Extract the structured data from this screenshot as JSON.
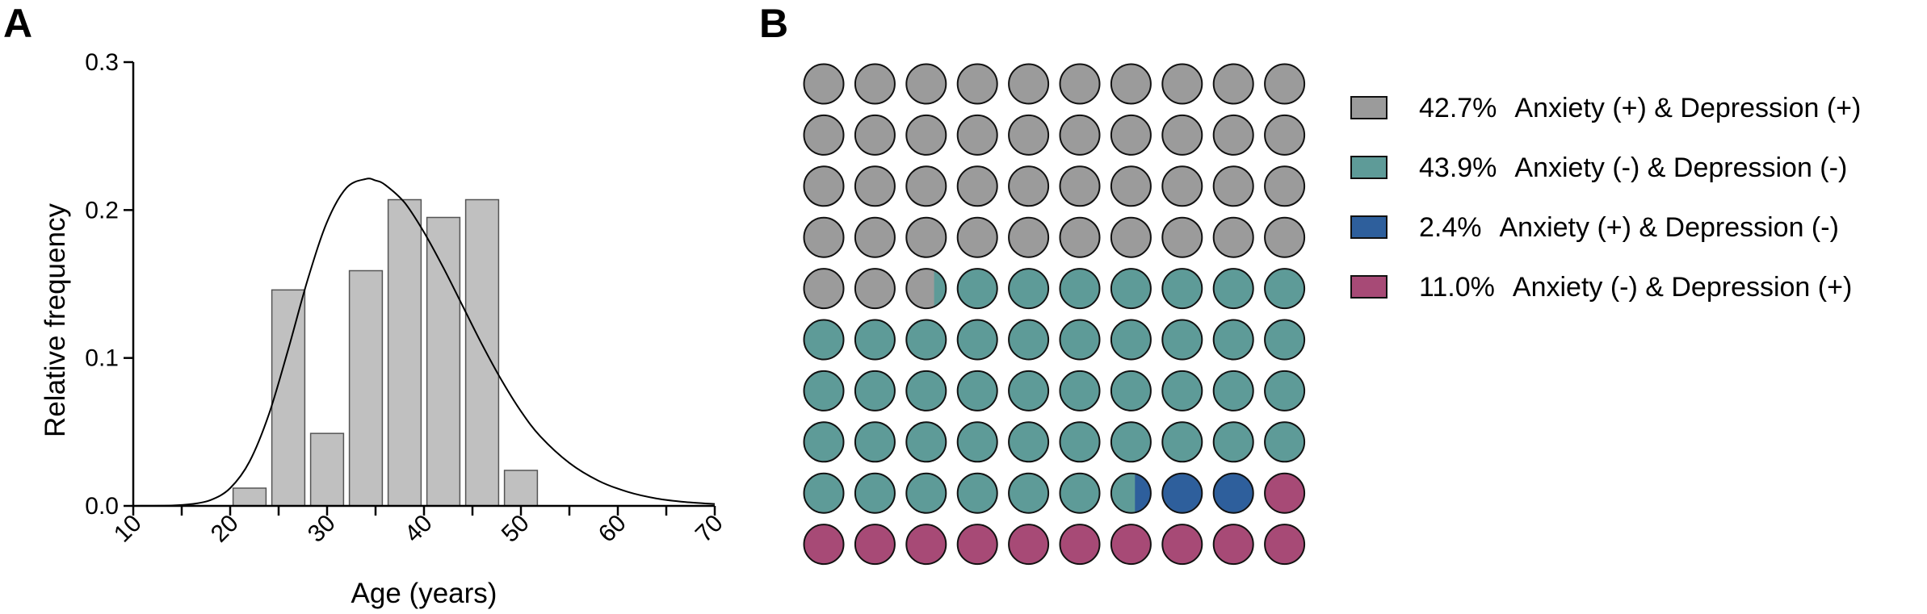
{
  "panel_a_label": "A",
  "panel_b_label": "B",
  "colors": {
    "bar_fill": "#c0c0c0",
    "bar_stroke": "#555555",
    "curve": "#000000",
    "axis": "#000000",
    "anx_pos_dep_pos": "#9b9b9b",
    "anx_neg_dep_neg": "#5e9b98",
    "anx_pos_dep_neg": "#2e5f9c",
    "anx_neg_dep_pos": "#a74a76"
  },
  "chart_data": [
    {
      "type": "bar",
      "panel": "A",
      "title": "",
      "xlabel": "Age (years)",
      "ylabel": "Relative frequency",
      "xlim": [
        10,
        70
      ],
      "ylim": [
        0,
        0.3
      ],
      "x_ticks": [
        "10",
        "20",
        "30",
        "40",
        "50",
        "60",
        "70"
      ],
      "y_ticks": [
        "0.0",
        "0.1",
        "0.2",
        "0.3"
      ],
      "grid": false,
      "bin_centers": [
        22,
        26,
        30,
        34,
        38,
        42,
        46,
        50
      ],
      "bin_width": 4,
      "values": [
        0.012,
        0.146,
        0.049,
        0.159,
        0.207,
        0.195,
        0.207,
        0.024
      ],
      "fitted_curve": {
        "type": "line",
        "x": [
          10,
          14,
          16,
          18,
          20,
          22,
          24,
          26,
          28,
          30,
          32,
          34,
          35,
          36,
          38,
          40,
          42,
          44,
          46,
          48,
          50,
          52,
          55,
          58,
          61,
          64,
          67,
          70
        ],
        "y": [
          0.0,
          0.0003,
          0.0012,
          0.004,
          0.012,
          0.03,
          0.062,
          0.106,
          0.153,
          0.192,
          0.215,
          0.221,
          0.22,
          0.217,
          0.205,
          0.185,
          0.161,
          0.135,
          0.109,
          0.085,
          0.064,
          0.047,
          0.029,
          0.017,
          0.0095,
          0.005,
          0.0026,
          0.0013
        ]
      }
    },
    {
      "type": "waffle",
      "panel": "B",
      "rows": 10,
      "cols": 10,
      "legend_position": "right",
      "categories": [
        {
          "key": "anx_pos_dep_pos",
          "percent": 42.7,
          "pct_label": "42.7%",
          "label": "Anxiety (+) & Depression (+)"
        },
        {
          "key": "anx_neg_dep_neg",
          "percent": 43.9,
          "pct_label": "43.9%",
          "label": "Anxiety (-) & Depression (-)"
        },
        {
          "key": "anx_pos_dep_neg",
          "percent": 2.4,
          "pct_label": "2.4%",
          "label": "Anxiety (+) & Depression (-)"
        },
        {
          "key": "anx_neg_dep_pos",
          "percent": 11.0,
          "pct_label": "11.0%",
          "label": "Anxiety (-) & Depression (+)"
        }
      ]
    }
  ]
}
